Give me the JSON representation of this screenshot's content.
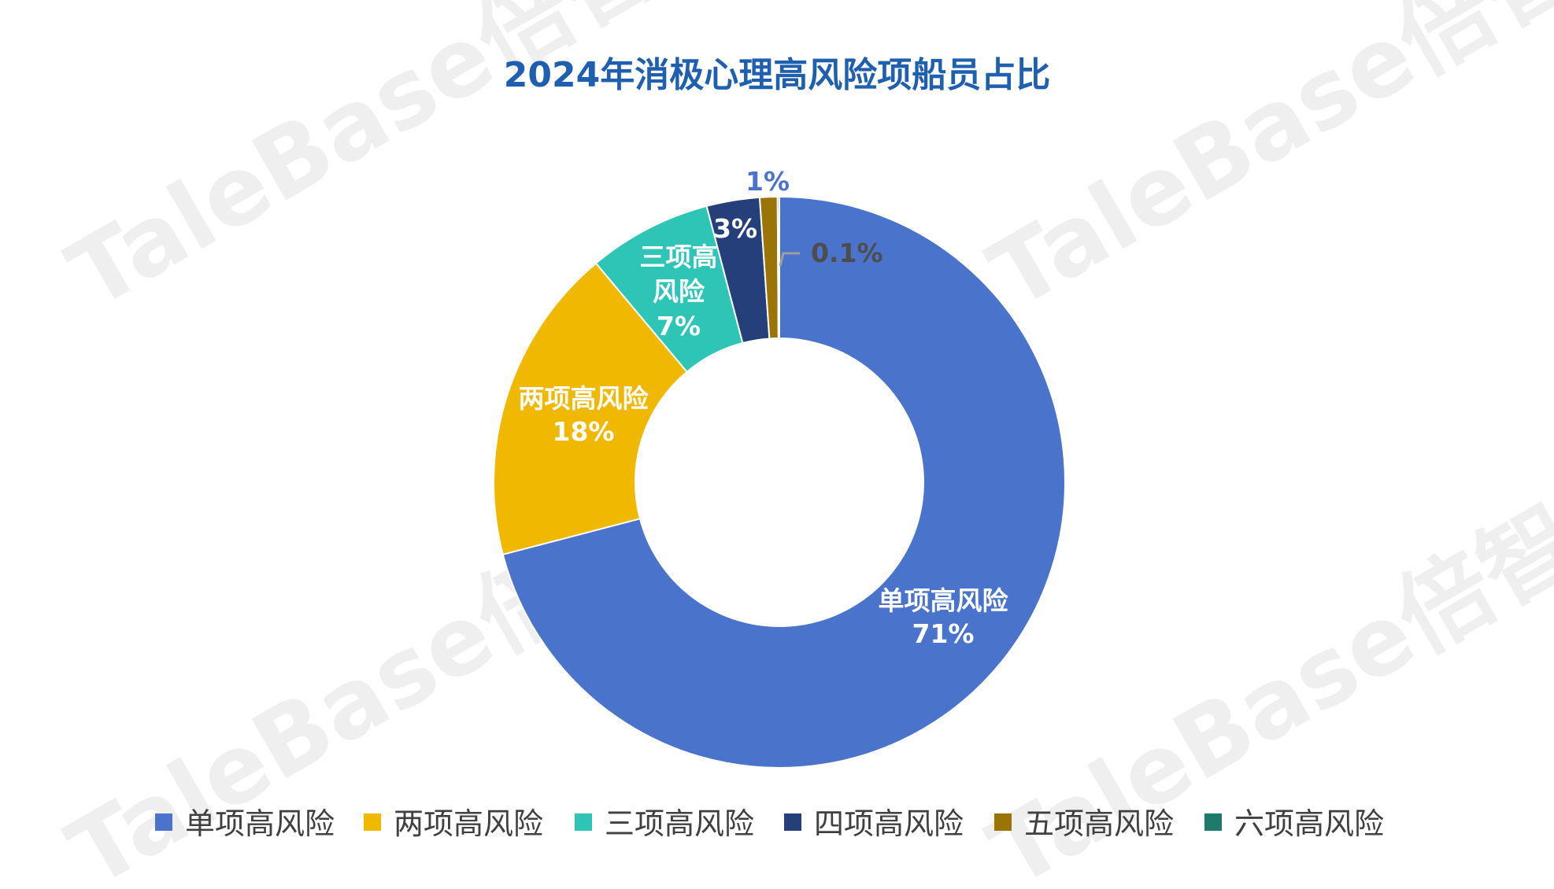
{
  "watermark": "TaleBase倍智",
  "colors": {
    "title": "#1F5FAF",
    "label_outside": "#4A73C9",
    "label_leader": "#9E9E9E",
    "label_small": "#4D4D4D"
  },
  "chart_data": {
    "type": "pie",
    "style": "donut",
    "title": "2024年消极心理高风险项船员占比",
    "legend_position": "bottom",
    "categories": [
      "单项高风险",
      "两项高风险",
      "三项高风险",
      "四项高风险",
      "五项高风险",
      "六项高风险"
    ],
    "values": [
      71,
      18,
      7,
      3,
      1,
      0.1
    ],
    "colors": [
      "#4A73CC",
      "#F0B800",
      "#2EC4B6",
      "#243F7A",
      "#9A7406",
      "#1F7A6E"
    ],
    "data_labels": [
      {
        "name": "单项高风险",
        "value": "71%"
      },
      {
        "name": "两项高风险",
        "value": "18%"
      },
      {
        "name": "三项高风险",
        "value": "7%"
      },
      {
        "name": "",
        "value": "3%"
      },
      {
        "name": "",
        "value": "1%"
      },
      {
        "name": "",
        "value": "0.1%"
      }
    ]
  }
}
